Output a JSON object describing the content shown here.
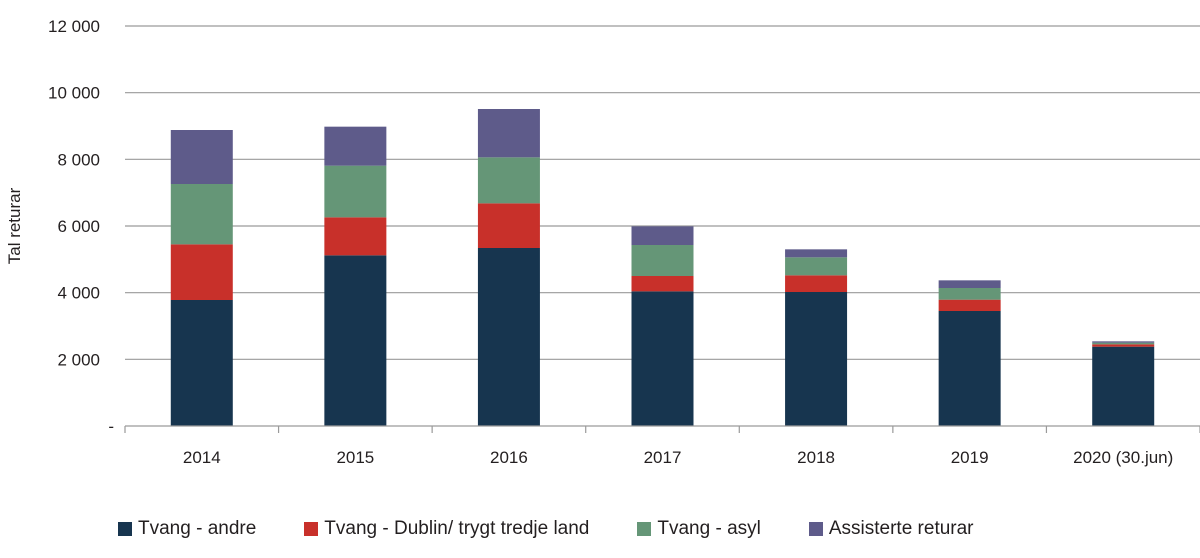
{
  "chart_data": {
    "type": "bar",
    "stacked": true,
    "title": "",
    "xlabel": "",
    "ylabel": "Tal returar",
    "ylim": [
      0,
      12000
    ],
    "yticks": [
      0,
      2000,
      4000,
      6000,
      8000,
      10000,
      12000
    ],
    "ytick_labels": [
      "-",
      "2 000",
      "4 000",
      "6 000",
      "8 000",
      "10 000",
      "12 000"
    ],
    "grid": true,
    "legend_position": "bottom",
    "categories": [
      "2014",
      "2015",
      "2016",
      "2017",
      "2018",
      "2019",
      "2020 (30.jun)"
    ],
    "series": [
      {
        "name": "Tvang - andre",
        "color": "#17354f",
        "values": [
          3780,
          5120,
          5340,
          4040,
          4020,
          3450,
          2380
        ]
      },
      {
        "name": "Tvang - Dublin/ trygt tredje land",
        "color": "#c8302a",
        "values": [
          1670,
          1140,
          1340,
          460,
          500,
          340,
          70
        ]
      },
      {
        "name": "Tvang - asyl",
        "color": "#659677",
        "values": [
          1810,
          1550,
          1380,
          930,
          540,
          350,
          50
        ]
      },
      {
        "name": "Assisterte returar",
        "color": "#5e5b8a",
        "values": [
          1620,
          1170,
          1450,
          560,
          240,
          230,
          40
        ]
      }
    ]
  }
}
